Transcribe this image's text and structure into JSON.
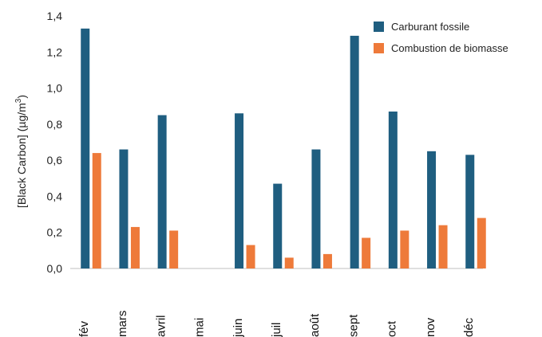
{
  "colors": {
    "fossil": "#1f5e80",
    "biomass": "#ee7a3a"
  },
  "chart_data": {
    "type": "bar",
    "title": "",
    "xlabel": "",
    "ylabel_prefix": "[Black Carbon] (µg/m",
    "ylabel_sup": "3",
    "ylabel_suffix": ")",
    "ylim": [
      0,
      1.4
    ],
    "yticks": [
      "0,0",
      "0,2",
      "0,4",
      "0,6",
      "0,8",
      "1,0",
      "1,2",
      "1,4"
    ],
    "grid": false,
    "legend_position": "top-right",
    "categories": [
      "fév",
      "mars",
      "avril",
      "mai",
      "juin",
      "juil",
      "août",
      "sept",
      "oct",
      "nov",
      "déc"
    ],
    "series": [
      {
        "name": "Carburant fossile",
        "values": [
          1.33,
          0.66,
          0.85,
          null,
          0.86,
          0.47,
          0.66,
          1.29,
          0.87,
          0.65,
          0.63
        ]
      },
      {
        "name": "Combustion de biomasse",
        "values": [
          0.64,
          0.23,
          0.21,
          null,
          0.13,
          0.06,
          0.08,
          0.17,
          0.21,
          0.24,
          0.28
        ]
      }
    ]
  }
}
